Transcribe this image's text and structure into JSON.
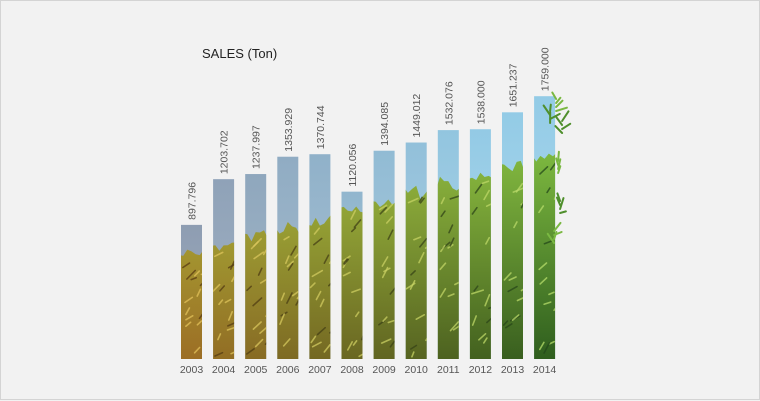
{
  "chart_data": {
    "type": "bar",
    "title": "SALES (Ton)",
    "xlabel": "",
    "ylabel": "",
    "categories": [
      "2003",
      "2004",
      "2005",
      "2006",
      "2007",
      "2008",
      "2009",
      "2010",
      "2011",
      "2012",
      "2013",
      "2014"
    ],
    "values": [
      897.796,
      1203.702,
      1237.997,
      1353.929,
      1370.744,
      1120.056,
      1394.085,
      1449.012,
      1532.076,
      1538.0,
      1651.237,
      1759.0
    ],
    "value_labels": [
      "897.796",
      "1203.702",
      "1237.997",
      "1353.929",
      "1370.744",
      "1120.056",
      "1394.085",
      "1449.012",
      "1532.076",
      "1538.000",
      "1651.237",
      "1759.000"
    ],
    "ylim": [
      0,
      1800
    ],
    "grid": false,
    "legend": "none"
  },
  "colors": {
    "background": "#f2f2f2",
    "sky_grey": "#8e9db2",
    "sky_blue": "#93cbe6",
    "foliage_dry": "#c8922e",
    "foliage_green": "#5f9a34",
    "text": "#555555"
  }
}
